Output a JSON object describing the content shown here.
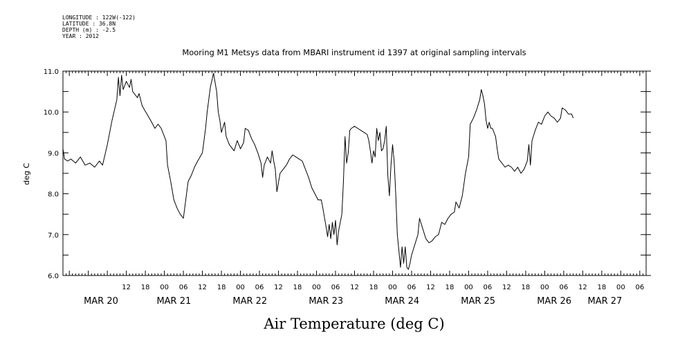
{
  "header": {
    "lines": [
      "LONGITUDE : 122W(-122)",
      "LATITUDE : 36.8N",
      "DEPTH (m) : -2.5",
      "YEAR : 2012"
    ]
  },
  "chart_data": {
    "type": "line",
    "title": "Mooring M1 Metsys data from MBARI instrument id 1397 at original sampling intervals",
    "xlabel": "Air Temperature (deg C)",
    "ylabel": "deg C",
    "xunit": "hours since MAR 20 00:00",
    "xlim": [
      -8,
      176
    ],
    "ylim": [
      6.0,
      11.0
    ],
    "yticks": [
      "6.0",
      "7.0",
      "8.0",
      "9.0",
      "10.0",
      "11.0"
    ],
    "hour_ticks": [
      {
        "h": 12,
        "label": "12"
      },
      {
        "h": 18,
        "label": "18"
      },
      {
        "h": 24,
        "label": "00"
      },
      {
        "h": 30,
        "label": "06"
      },
      {
        "h": 36,
        "label": "12"
      },
      {
        "h": 42,
        "label": "18"
      },
      {
        "h": 48,
        "label": "00"
      },
      {
        "h": 54,
        "label": "06"
      },
      {
        "h": 60,
        "label": "12"
      },
      {
        "h": 66,
        "label": "18"
      },
      {
        "h": 72,
        "label": "00"
      },
      {
        "h": 78,
        "label": "06"
      },
      {
        "h": 84,
        "label": "12"
      },
      {
        "h": 90,
        "label": "18"
      },
      {
        "h": 96,
        "label": "00"
      },
      {
        "h": 102,
        "label": "06"
      },
      {
        "h": 108,
        "label": "12"
      },
      {
        "h": 114,
        "label": "18"
      },
      {
        "h": 120,
        "label": "00"
      },
      {
        "h": 126,
        "label": "06"
      },
      {
        "h": 132,
        "label": "12"
      },
      {
        "h": 138,
        "label": "18"
      },
      {
        "h": 144,
        "label": "00"
      },
      {
        "h": 150,
        "label": "06"
      },
      {
        "h": 156,
        "label": "12"
      },
      {
        "h": 162,
        "label": "18"
      },
      {
        "h": 168,
        "label": "00"
      },
      {
        "h": 174,
        "label": "06"
      }
    ],
    "day_labels": [
      {
        "h": 4,
        "label": "MAR 20"
      },
      {
        "h": 27,
        "label": "MAR 21"
      },
      {
        "h": 51,
        "label": "MAR 22"
      },
      {
        "h": 75,
        "label": "MAR 23"
      },
      {
        "h": 99,
        "label": "MAR 24"
      },
      {
        "h": 123,
        "label": "MAR 25"
      },
      {
        "h": 147,
        "label": "MAR 26"
      },
      {
        "h": 163,
        "label": "MAR 27"
      }
    ],
    "series": [
      {
        "color": "#000000",
        "points": [
          [
            -8.0,
            9.1
          ],
          [
            -7.5,
            8.85
          ],
          [
            -6.5,
            8.8
          ],
          [
            -5.5,
            8.85
          ],
          [
            -4.0,
            8.75
          ],
          [
            -2.5,
            8.9
          ],
          [
            -1.0,
            8.7
          ],
          [
            0.5,
            8.75
          ],
          [
            2.0,
            8.65
          ],
          [
            3.5,
            8.8
          ],
          [
            4.5,
            8.7
          ],
          [
            6.0,
            9.2
          ],
          [
            7.5,
            9.8
          ],
          [
            9.0,
            10.3
          ],
          [
            9.5,
            10.85
          ],
          [
            10.0,
            10.4
          ],
          [
            10.5,
            10.9
          ],
          [
            11.0,
            10.55
          ],
          [
            12.0,
            10.75
          ],
          [
            13.0,
            10.6
          ],
          [
            13.5,
            10.8
          ],
          [
            14.0,
            10.5
          ],
          [
            15.5,
            10.35
          ],
          [
            16.0,
            10.45
          ],
          [
            17.0,
            10.15
          ],
          [
            18.5,
            9.95
          ],
          [
            20.0,
            9.75
          ],
          [
            21.0,
            9.6
          ],
          [
            22.0,
            9.7
          ],
          [
            23.0,
            9.6
          ],
          [
            24.5,
            9.3
          ],
          [
            25.0,
            8.7
          ],
          [
            26.0,
            8.3
          ],
          [
            27.0,
            7.85
          ],
          [
            28.0,
            7.65
          ],
          [
            29.0,
            7.5
          ],
          [
            30.0,
            7.4
          ],
          [
            31.5,
            8.3
          ],
          [
            32.5,
            8.45
          ],
          [
            33.5,
            8.65
          ],
          [
            34.5,
            8.8
          ],
          [
            36.0,
            9.0
          ],
          [
            37.0,
            9.6
          ],
          [
            37.5,
            10.0
          ],
          [
            38.5,
            10.6
          ],
          [
            39.5,
            10.95
          ],
          [
            40.5,
            10.5
          ],
          [
            41.0,
            10.0
          ],
          [
            41.5,
            9.8
          ],
          [
            42.0,
            9.5
          ],
          [
            43.0,
            9.75
          ],
          [
            43.5,
            9.4
          ],
          [
            44.5,
            9.2
          ],
          [
            46.0,
            9.05
          ],
          [
            47.0,
            9.3
          ],
          [
            48.0,
            9.1
          ],
          [
            49.0,
            9.25
          ],
          [
            49.5,
            9.6
          ],
          [
            50.5,
            9.55
          ],
          [
            51.5,
            9.35
          ],
          [
            52.5,
            9.2
          ],
          [
            53.5,
            9.0
          ],
          [
            54.5,
            8.75
          ],
          [
            55.0,
            8.4
          ],
          [
            55.5,
            8.7
          ],
          [
            56.5,
            8.9
          ],
          [
            57.5,
            8.75
          ],
          [
            58.0,
            9.05
          ],
          [
            58.5,
            8.8
          ],
          [
            59.0,
            8.6
          ],
          [
            59.5,
            8.05
          ],
          [
            60.5,
            8.5
          ],
          [
            61.5,
            8.6
          ],
          [
            62.5,
            8.7
          ],
          [
            63.5,
            8.85
          ],
          [
            64.5,
            8.95
          ],
          [
            65.5,
            8.9
          ],
          [
            66.5,
            8.85
          ],
          [
            67.5,
            8.8
          ],
          [
            68.5,
            8.6
          ],
          [
            69.5,
            8.4
          ],
          [
            70.5,
            8.15
          ],
          [
            71.5,
            8.0
          ],
          [
            72.5,
            7.85
          ],
          [
            73.5,
            7.85
          ],
          [
            74.0,
            7.65
          ],
          [
            75.0,
            7.2
          ],
          [
            75.5,
            6.95
          ],
          [
            76.0,
            7.25
          ],
          [
            76.5,
            6.9
          ],
          [
            77.0,
            7.3
          ],
          [
            77.5,
            7.0
          ],
          [
            78.0,
            7.35
          ],
          [
            78.5,
            6.75
          ],
          [
            79.0,
            7.1
          ],
          [
            79.5,
            7.3
          ],
          [
            80.0,
            7.5
          ],
          [
            80.5,
            8.3
          ],
          [
            81.0,
            9.4
          ],
          [
            81.5,
            8.75
          ],
          [
            82.0,
            9.0
          ],
          [
            82.5,
            9.55
          ],
          [
            83.0,
            9.6
          ],
          [
            84.0,
            9.65
          ],
          [
            85.0,
            9.6
          ],
          [
            86.0,
            9.55
          ],
          [
            87.0,
            9.5
          ],
          [
            88.0,
            9.45
          ],
          [
            88.5,
            9.3
          ],
          [
            89.0,
            9.05
          ],
          [
            89.5,
            8.75
          ],
          [
            90.0,
            9.05
          ],
          [
            90.5,
            8.9
          ],
          [
            91.0,
            9.6
          ],
          [
            91.5,
            9.3
          ],
          [
            92.0,
            9.5
          ],
          [
            92.5,
            9.05
          ],
          [
            93.0,
            9.1
          ],
          [
            93.5,
            9.3
          ],
          [
            94.0,
            9.65
          ],
          [
            94.5,
            8.45
          ],
          [
            95.0,
            7.95
          ],
          [
            95.5,
            8.7
          ],
          [
            96.0,
            9.2
          ],
          [
            96.5,
            8.8
          ],
          [
            97.0,
            8.0
          ],
          [
            97.5,
            7.0
          ],
          [
            98.0,
            6.6
          ],
          [
            98.5,
            6.2
          ],
          [
            99.0,
            6.7
          ],
          [
            99.5,
            6.3
          ],
          [
            100.0,
            6.7
          ],
          [
            100.5,
            6.2
          ],
          [
            101.0,
            6.15
          ],
          [
            101.5,
            6.3
          ],
          [
            102.0,
            6.5
          ],
          [
            103.0,
            6.75
          ],
          [
            104.0,
            7.0
          ],
          [
            104.5,
            7.4
          ],
          [
            105.5,
            7.15
          ],
          [
            106.5,
            6.9
          ],
          [
            107.5,
            6.8
          ],
          [
            108.5,
            6.85
          ],
          [
            109.5,
            6.95
          ],
          [
            110.5,
            7.0
          ],
          [
            111.5,
            7.3
          ],
          [
            112.5,
            7.25
          ],
          [
            113.5,
            7.4
          ],
          [
            114.5,
            7.5
          ],
          [
            115.5,
            7.55
          ],
          [
            116.0,
            7.8
          ],
          [
            117.0,
            7.65
          ],
          [
            118.0,
            7.95
          ],
          [
            119.0,
            8.5
          ],
          [
            120.0,
            8.9
          ],
          [
            120.5,
            9.7
          ],
          [
            121.5,
            9.85
          ],
          [
            122.5,
            10.05
          ],
          [
            123.5,
            10.3
          ],
          [
            124.0,
            10.55
          ],
          [
            124.5,
            10.4
          ],
          [
            125.0,
            10.2
          ],
          [
            125.5,
            9.8
          ],
          [
            126.0,
            9.6
          ],
          [
            126.5,
            9.75
          ],
          [
            127.0,
            9.6
          ],
          [
            127.5,
            9.6
          ],
          [
            128.5,
            9.4
          ],
          [
            129.0,
            9.1
          ],
          [
            129.5,
            8.85
          ],
          [
            130.5,
            8.75
          ],
          [
            131.5,
            8.65
          ],
          [
            132.5,
            8.7
          ],
          [
            133.5,
            8.65
          ],
          [
            134.5,
            8.55
          ],
          [
            135.5,
            8.65
          ],
          [
            136.5,
            8.5
          ],
          [
            137.5,
            8.6
          ],
          [
            138.5,
            8.8
          ],
          [
            139.0,
            9.2
          ],
          [
            139.5,
            8.7
          ],
          [
            140.0,
            9.3
          ],
          [
            141.0,
            9.55
          ],
          [
            142.0,
            9.75
          ],
          [
            143.0,
            9.7
          ],
          [
            144.0,
            9.9
          ],
          [
            145.0,
            10.0
          ],
          [
            146.0,
            9.9
          ],
          [
            147.0,
            9.85
          ],
          [
            148.0,
            9.75
          ],
          [
            149.0,
            9.85
          ],
          [
            149.5,
            10.1
          ],
          [
            150.5,
            10.05
          ],
          [
            151.5,
            9.95
          ],
          [
            152.5,
            9.95
          ],
          [
            153.0,
            9.85
          ]
        ]
      }
    ]
  }
}
